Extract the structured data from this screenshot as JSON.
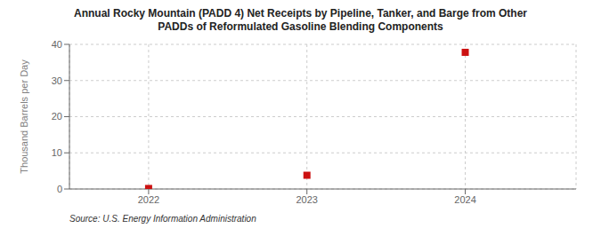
{
  "chart_data": {
    "type": "scatter",
    "title": "Annual Rocky Mountain (PADD 4) Net Receipts by Pipeline, Tanker, and Barge from Other",
    "subtitle": "PADDs of Reformulated Gasoline Blending Components",
    "ylabel": "Thousand Barrels per Day",
    "annotations": [
      "Source: U.S. Energy Information Administration"
    ],
    "x": [
      2022,
      2023,
      2024
    ],
    "values": [
      0.15,
      3.8,
      37.8
    ],
    "color": "#cc1111",
    "marker": "square",
    "xlim": [
      2021.5,
      2024.7
    ],
    "xticks": [
      2022,
      2023,
      2024
    ],
    "ylim": [
      0,
      40
    ],
    "yticks": [
      0,
      10,
      20,
      30,
      40
    ],
    "grid": true
  }
}
